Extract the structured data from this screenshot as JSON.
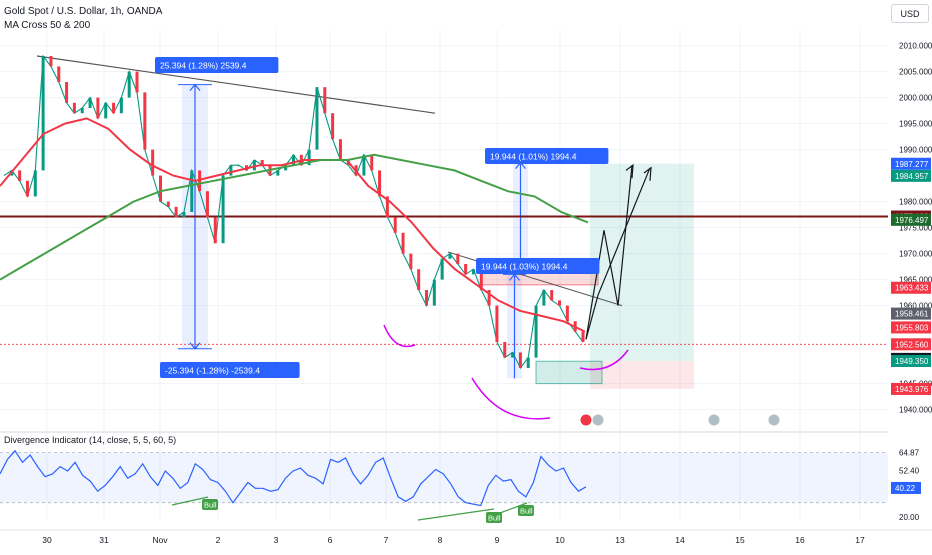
{
  "header": {
    "symbol_title": "Gold Spot / U.S. Dollar, 1h, OANDA",
    "indicator_title": "MA Cross 50 & 200",
    "currency_button": "USD"
  },
  "chart_data": {
    "type": "line",
    "title": "Gold Spot / U.S. Dollar, 1h, OANDA",
    "xlabel": "",
    "ylabel": "",
    "price_axis": {
      "ticks": [
        "2010.000",
        "2005.000",
        "2000.000",
        "1995.000",
        "1990.000",
        "1980.000",
        "1975.000",
        "1970.000",
        "1965.000",
        "1960.000",
        "1945.000",
        "1940.000"
      ],
      "ylim": [
        1938,
        2013
      ]
    },
    "time_axis": {
      "ticks": [
        "30",
        "31",
        "Nov",
        "2",
        "3",
        "6",
        "7",
        "8",
        "9",
        "10",
        "13",
        "14",
        "15",
        "16",
        "17"
      ]
    },
    "price_labels": [
      {
        "value": "1987.277",
        "color": "#2962ff"
      },
      {
        "value": "1984.957",
        "color": "#089981"
      },
      {
        "value": "1977.132",
        "color": "#7b1515"
      },
      {
        "value": "1976.497",
        "color": "#1e6b2e"
      },
      {
        "value": "1963.433",
        "color": "#f23645"
      },
      {
        "value": "1958.461",
        "color": "#5d606b"
      },
      {
        "value": "1955.803",
        "color": "#f23645"
      },
      {
        "value": "1952.560",
        "color": "#f23645"
      },
      {
        "value": "1949.752",
        "color": "#131722"
      },
      {
        "value": "1949.350",
        "color": "#089981"
      },
      {
        "value": "1943.976",
        "color": "#f23645"
      }
    ],
    "series": [
      {
        "values": [
          1985,
          1986,
          1984,
          1981,
          1986,
          2008,
          2006,
          2003,
          1999,
          1997,
          1998,
          2000,
          1996,
          1999,
          1997,
          2000,
          2005,
          2001,
          1990,
          1985,
          1980,
          1979,
          1977,
          1978,
          1986,
          1982,
          1977,
          1972,
          1985,
          1987,
          1987,
          1986,
          1988,
          1987,
          1985,
          1986,
          1987,
          1989,
          1987,
          1990,
          2002,
          1997,
          1992,
          1988,
          1987,
          1985,
          1989,
          1986,
          1981,
          1977,
          1974,
          1970,
          1967,
          1963,
          1960,
          1965,
          1969,
          1970,
          1968,
          1966,
          1967,
          1963,
          1960,
          1953,
          1950,
          1951,
          1948,
          1950,
          1960,
          1963,
          1961,
          1960,
          1957,
          1955,
          1953
        ]
      },
      {
        "name": "MA 50",
        "color": "#f23645",
        "values": [
          1983,
          1988,
          1993,
          1995,
          1996,
          1994,
          1990,
          1987,
          1985,
          1984,
          1985,
          1986,
          1987,
          1987,
          1988,
          1988,
          1988,
          1983,
          1980,
          1976,
          1971,
          1967,
          1964,
          1961,
          1959,
          1958,
          1957,
          1955
        ]
      },
      {
        "name": "MA 200",
        "color": "#43a047",
        "values": [
          1965,
          1968,
          1971,
          1974,
          1977,
          1980,
          1982,
          1983,
          1984,
          1985,
          1986,
          1987,
          1988,
          1988,
          1989,
          1988,
          1987,
          1986,
          1984,
          1982,
          1981,
          1978,
          1976
        ]
      }
    ],
    "trendline": {
      "start": 2008,
      "end": 1997,
      "color": "#555555"
    },
    "horizontal_levels": [
      {
        "value": 1977.132,
        "color": "#7b1515"
      },
      {
        "value": 1952.56,
        "color": "#f23645",
        "dashed": true
      }
    ],
    "measures": [
      {
        "label": "25.394 (1.28%) 2539.4",
        "from": 1977.132,
        "to": 2002.5
      },
      {
        "label": "-25.394 (-1.28%) -2539.4",
        "from": 1977.132,
        "to": 1951.7
      },
      {
        "label": "19.944 (1.01%) 1994.4",
        "from": 1967.5,
        "to": 1987.5
      },
      {
        "label": "19.944 (1.03%) 1994.4",
        "from": 1946.0,
        "to": 1966.0
      }
    ],
    "position": {
      "entry": 1949.35,
      "target": 1987.3,
      "stop": 1943.976
    },
    "zones": {
      "supply": [
        1964.0,
        1967.5
      ],
      "demand": [
        1945.0,
        1949.3
      ]
    },
    "projection_path": [
      1953.5,
      1974.5,
      1960.0,
      1987.0
    ],
    "projection_path_2": [
      1953.5,
      1962.0,
      1986.5
    ],
    "oscillator": {
      "title": "Divergence Indicator (14, close, 5, 5, 60, 5)",
      "ticks": [
        "64.87",
        "52.40",
        "40.22",
        "20.00"
      ],
      "current": "40.22",
      "upper": 64.87,
      "lower": 30.0,
      "ylim": [
        18,
        70
      ],
      "values": [
        50,
        60,
        66,
        58,
        63,
        55,
        48,
        50,
        55,
        52,
        58,
        49,
        45,
        38,
        42,
        48,
        55,
        47,
        50,
        57,
        48,
        42,
        52,
        47,
        40,
        44,
        57,
        53,
        46,
        44,
        38,
        30,
        37,
        44,
        40,
        40,
        38,
        39,
        47,
        52,
        54,
        49,
        47,
        43,
        60,
        58,
        61,
        50,
        43,
        49,
        58,
        61,
        47,
        34,
        31,
        34,
        43,
        48,
        53,
        50,
        43,
        34,
        30,
        29,
        28,
        42,
        49,
        45,
        46,
        38,
        34,
        44,
        62,
        56,
        52,
        54,
        44,
        38,
        41
      ],
      "divergences": [
        {
          "label": "Bull",
          "from": 31,
          "to": 34
        },
        {
          "label": "Bull",
          "from": 27,
          "to": 31
        },
        {
          "label": "Bull",
          "from": 28,
          "to": 31
        }
      ]
    }
  }
}
